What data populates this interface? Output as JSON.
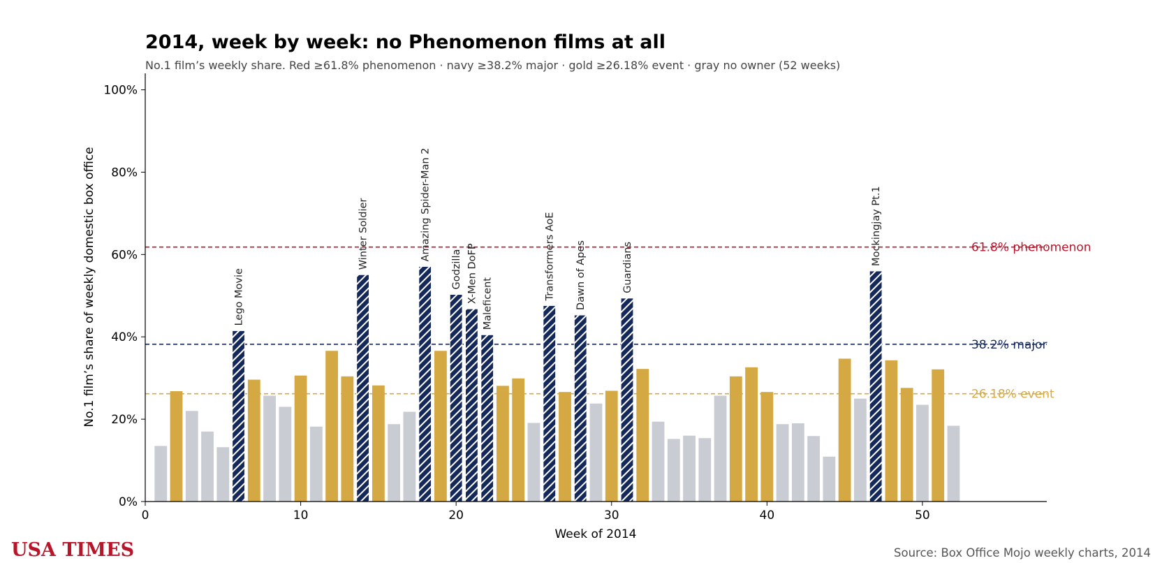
{
  "title": "2014, week by week: no Phenomenon films at all",
  "subtitle": "No.1 film’s weekly share. Red ≥61.8% phenomenon · navy ≥38.2% major · gold ≥26.18% event · gray no owner (52 weeks)",
  "brand": "USA TIMES",
  "source": "Source: Box Office Mojo weekly charts, 2014",
  "colors": {
    "phenomenon": "#b8152a",
    "major": "#14295a",
    "event": "#d4a843",
    "none": "#c9ccd3",
    "brand": "#b8152a"
  },
  "chart_data": {
    "type": "bar",
    "xlabel": "Week of 2014",
    "ylabel": "No.1 film’s share of weekly domestic box office",
    "xlim": [
      0,
      58
    ],
    "ylim": [
      0,
      104
    ],
    "xticks": [
      0,
      10,
      20,
      30,
      40,
      50
    ],
    "yticks": [
      0,
      20,
      40,
      60,
      80,
      100
    ],
    "ytick_labels": [
      "0%",
      "20%",
      "40%",
      "60%",
      "80%",
      "100%"
    ],
    "reference_lines": [
      {
        "value": 61.8,
        "label": "61.8% phenomenon",
        "tier": "phenomenon"
      },
      {
        "value": 38.2,
        "label": "38.2% major",
        "tier": "major"
      },
      {
        "value": 26.18,
        "label": "26.18% event",
        "tier": "event"
      }
    ],
    "weeks": [
      {
        "week": 1,
        "share": 13.5,
        "tier": "none",
        "label": ""
      },
      {
        "week": 2,
        "share": 26.8,
        "tier": "event",
        "label": ""
      },
      {
        "week": 3,
        "share": 22.0,
        "tier": "none",
        "label": ""
      },
      {
        "week": 4,
        "share": 17.0,
        "tier": "none",
        "label": ""
      },
      {
        "week": 5,
        "share": 13.2,
        "tier": "none",
        "label": ""
      },
      {
        "week": 6,
        "share": 41.5,
        "tier": "major",
        "label": "Lego Movie"
      },
      {
        "week": 7,
        "share": 29.6,
        "tier": "event",
        "label": ""
      },
      {
        "week": 8,
        "share": 25.7,
        "tier": "none",
        "label": ""
      },
      {
        "week": 9,
        "share": 23.0,
        "tier": "none",
        "label": ""
      },
      {
        "week": 10,
        "share": 30.6,
        "tier": "event",
        "label": ""
      },
      {
        "week": 11,
        "share": 18.2,
        "tier": "none",
        "label": ""
      },
      {
        "week": 12,
        "share": 36.6,
        "tier": "event",
        "label": ""
      },
      {
        "week": 13,
        "share": 30.4,
        "tier": "event",
        "label": ""
      },
      {
        "week": 14,
        "share": 55.1,
        "tier": "major",
        "label": "Winter Soldier"
      },
      {
        "week": 15,
        "share": 28.2,
        "tier": "event",
        "label": ""
      },
      {
        "week": 16,
        "share": 18.8,
        "tier": "none",
        "label": ""
      },
      {
        "week": 17,
        "share": 21.8,
        "tier": "none",
        "label": ""
      },
      {
        "week": 18,
        "share": 57.1,
        "tier": "major",
        "label": "Amazing Spider-Man 2"
      },
      {
        "week": 19,
        "share": 36.6,
        "tier": "event",
        "label": ""
      },
      {
        "week": 20,
        "share": 50.3,
        "tier": "major",
        "label": "Godzilla"
      },
      {
        "week": 21,
        "share": 46.8,
        "tier": "major",
        "label": "X-Men DoFP"
      },
      {
        "week": 22,
        "share": 40.5,
        "tier": "major",
        "label": "Maleficent"
      },
      {
        "week": 23,
        "share": 28.1,
        "tier": "event",
        "label": ""
      },
      {
        "week": 24,
        "share": 29.9,
        "tier": "event",
        "label": ""
      },
      {
        "week": 25,
        "share": 19.1,
        "tier": "none",
        "label": ""
      },
      {
        "week": 26,
        "share": 47.6,
        "tier": "major",
        "label": "Transformers AoE"
      },
      {
        "week": 27,
        "share": 26.6,
        "tier": "event",
        "label": ""
      },
      {
        "week": 28,
        "share": 45.3,
        "tier": "major",
        "label": "Dawn of Apes"
      },
      {
        "week": 29,
        "share": 23.8,
        "tier": "none",
        "label": ""
      },
      {
        "week": 30,
        "share": 26.9,
        "tier": "event",
        "label": ""
      },
      {
        "week": 31,
        "share": 49.4,
        "tier": "major",
        "label": "Guardians"
      },
      {
        "week": 32,
        "share": 32.2,
        "tier": "event",
        "label": ""
      },
      {
        "week": 33,
        "share": 19.4,
        "tier": "none",
        "label": ""
      },
      {
        "week": 34,
        "share": 15.2,
        "tier": "none",
        "label": ""
      },
      {
        "week": 35,
        "share": 16.0,
        "tier": "none",
        "label": ""
      },
      {
        "week": 36,
        "share": 15.4,
        "tier": "none",
        "label": ""
      },
      {
        "week": 37,
        "share": 25.7,
        "tier": "none",
        "label": ""
      },
      {
        "week": 38,
        "share": 30.4,
        "tier": "event",
        "label": ""
      },
      {
        "week": 39,
        "share": 32.6,
        "tier": "event",
        "label": ""
      },
      {
        "week": 40,
        "share": 26.6,
        "tier": "event",
        "label": ""
      },
      {
        "week": 41,
        "share": 18.8,
        "tier": "none",
        "label": ""
      },
      {
        "week": 42,
        "share": 19.0,
        "tier": "none",
        "label": ""
      },
      {
        "week": 43,
        "share": 15.9,
        "tier": "none",
        "label": ""
      },
      {
        "week": 44,
        "share": 10.9,
        "tier": "none",
        "label": ""
      },
      {
        "week": 45,
        "share": 34.7,
        "tier": "event",
        "label": ""
      },
      {
        "week": 46,
        "share": 25.0,
        "tier": "none",
        "label": ""
      },
      {
        "week": 47,
        "share": 56.0,
        "tier": "major",
        "label": "Mockingjay Pt.1"
      },
      {
        "week": 48,
        "share": 34.3,
        "tier": "event",
        "label": ""
      },
      {
        "week": 49,
        "share": 27.6,
        "tier": "event",
        "label": ""
      },
      {
        "week": 50,
        "share": 23.5,
        "tier": "none",
        "label": ""
      },
      {
        "week": 51,
        "share": 32.1,
        "tier": "event",
        "label": ""
      },
      {
        "week": 52,
        "share": 18.4,
        "tier": "none",
        "label": ""
      }
    ]
  }
}
